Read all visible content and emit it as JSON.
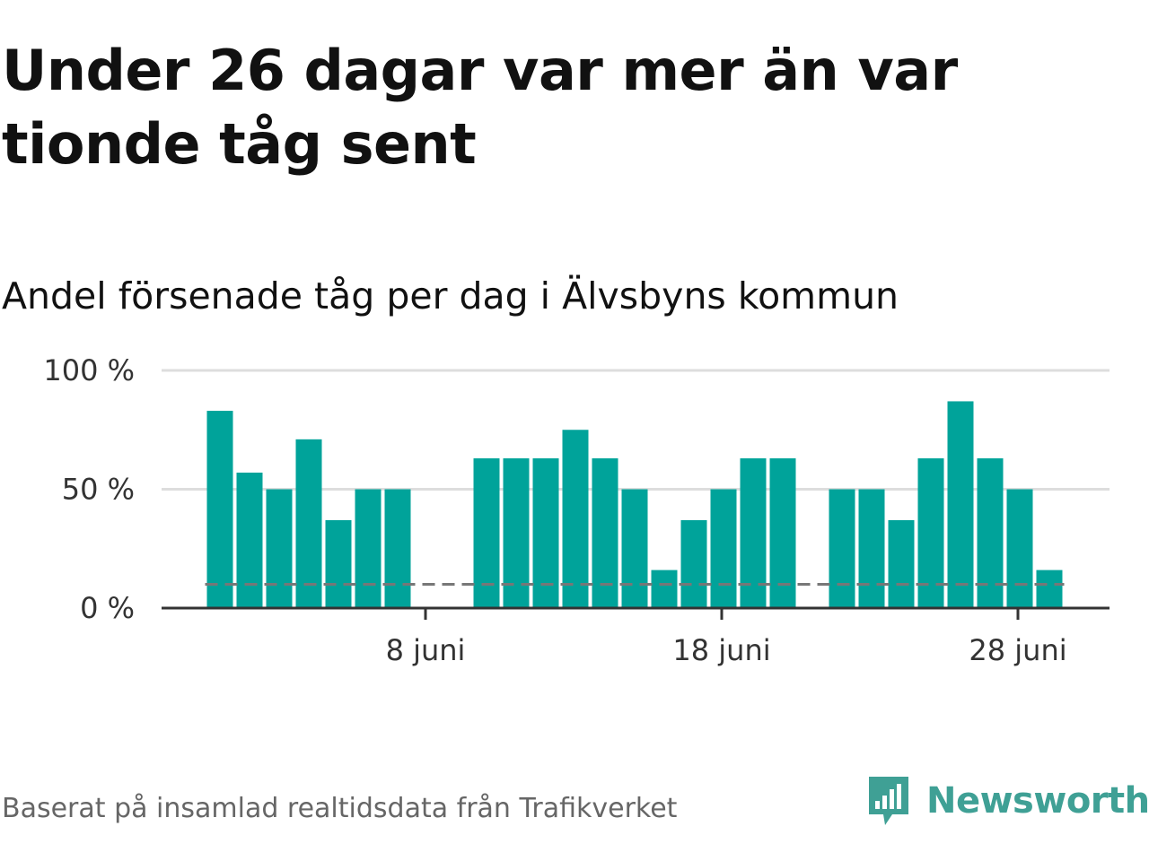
{
  "chart_data": {
    "type": "bar",
    "title": "Under 26 dagar var mer än var tionde tåg sent",
    "subtitle": "Andel försenade tåg per dag i Älvsbyns kommun",
    "x": [
      1,
      2,
      3,
      4,
      5,
      6,
      7,
      8,
      9,
      10,
      11,
      12,
      13,
      14,
      15,
      16,
      17,
      18,
      19,
      20,
      21,
      22,
      23,
      24,
      25,
      26,
      27,
      28,
      29
    ],
    "x_ticks": [
      8,
      18,
      28
    ],
    "x_tick_labels": [
      "8 juni",
      "18 juni",
      "28 juni"
    ],
    "values": [
      83,
      57,
      50,
      71,
      37,
      50,
      50,
      null,
      null,
      63,
      63,
      63,
      75,
      63,
      50,
      16,
      37,
      50,
      63,
      63,
      null,
      50,
      50,
      37,
      63,
      87,
      63,
      50,
      16
    ],
    "reference_line": 10,
    "y_ticks": [
      0,
      50,
      100
    ],
    "y_tick_labels": [
      "0 %",
      "50 %",
      "100 %"
    ],
    "ylim": [
      0,
      100
    ],
    "grid": true,
    "colors": {
      "bar": "#00a39a",
      "grid": "#dddddd",
      "axis": "#333333",
      "reference": "#777777"
    }
  },
  "footer": {
    "source": "Baserat på insamlad realtidsdata från Trafikverket",
    "brand": "Newsworthy",
    "brand_color": "#3fa095"
  },
  "icons": {
    "logo": "newsworthy-logo-icon"
  }
}
